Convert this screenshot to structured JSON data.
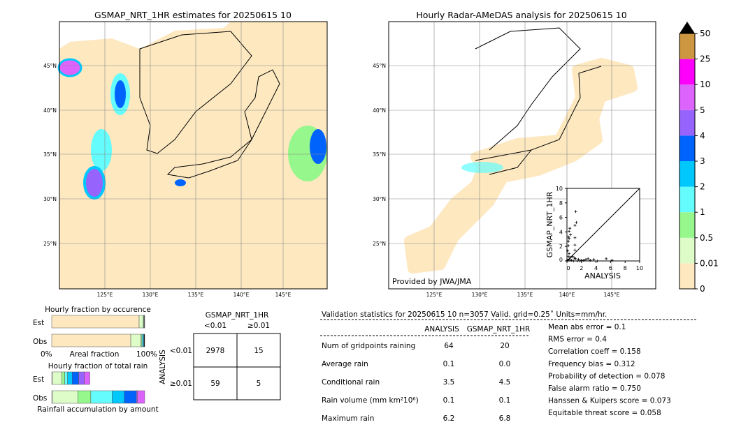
{
  "colors": {
    "c0": "#fde8c0",
    "c1": "#ddfcc8",
    "c2": "#96f78c",
    "c3": "#64fcfc",
    "c4": "#00c8fc",
    "c5": "#0064fc",
    "c6": "#9664fc",
    "c7": "#dc64fc",
    "c8": "#fc00fc",
    "c9": "#cd9640",
    "over": "#000000"
  },
  "chart_data": [
    {
      "type": "heatmap",
      "title": "GSMAP_NRT_1HR estimates for 20250615 10",
      "lon_ticks": [
        "125°E",
        "130°E",
        "135°E",
        "140°E",
        "145°E"
      ],
      "lat_ticks": [
        "45°N",
        "40°N",
        "35°N",
        "30°N",
        "25°N"
      ],
      "grid": true
    },
    {
      "type": "heatmap",
      "title": "Hourly Radar-AMeDAS analysis for 20250615 10",
      "lon_ticks": [
        "125°E",
        "130°E",
        "135°E",
        "140°E",
        "145°E"
      ],
      "lat_ticks": [
        "45°N",
        "40°N",
        "35°N",
        "30°N",
        "25°N"
      ],
      "grid": true,
      "annotation": "Provided by JWA/JMA"
    },
    {
      "type": "colorbar",
      "ticks": [
        "0",
        "0.01",
        "0.5",
        "1",
        "2",
        "3",
        "4",
        "5",
        "10",
        "25",
        "50"
      ],
      "extend": "max"
    },
    {
      "type": "scatter",
      "xlabel": "ANALYSIS",
      "ylabel": "GSMAP_NRT_1HR",
      "xlim": [
        0,
        10
      ],
      "ylim": [
        0,
        10
      ],
      "xticks": [
        "0",
        "2",
        "4",
        "6",
        "8",
        "10"
      ],
      "yticks": [
        "0",
        "2",
        "4",
        "6",
        "8",
        "10"
      ],
      "points": [
        [
          1.2,
          6.8
        ],
        [
          1.3,
          5.3
        ],
        [
          1.1,
          4.9
        ],
        [
          0.4,
          4.5
        ],
        [
          0.3,
          4.1
        ],
        [
          0.5,
          3.6
        ],
        [
          0.2,
          3.3
        ],
        [
          0.3,
          3.1
        ],
        [
          1.1,
          3.2
        ],
        [
          0.2,
          2.7
        ],
        [
          1.1,
          2.2
        ],
        [
          0.2,
          2.1
        ],
        [
          1.1,
          1.5
        ],
        [
          0.1,
          1.4
        ],
        [
          0.3,
          1.0
        ],
        [
          0.2,
          0.6
        ],
        [
          0.5,
          0.5
        ],
        [
          0.8,
          0.6
        ],
        [
          1.0,
          0.4
        ],
        [
          1.2,
          0.3
        ],
        [
          1.6,
          0.2
        ],
        [
          2.0,
          0.1
        ],
        [
          2.3,
          0.1
        ],
        [
          2.6,
          0.2
        ],
        [
          2.9,
          0.3
        ],
        [
          3.2,
          0.1
        ],
        [
          3.7,
          0.2
        ],
        [
          5.4,
          0.3
        ],
        [
          6.2,
          0.1
        ],
        [
          0.6,
          0.1
        ],
        [
          0.9,
          0.0
        ],
        [
          1.4,
          0.0
        ],
        [
          1.8,
          0.0
        ],
        [
          0.3,
          0.2
        ],
        [
          0.1,
          0.1
        ],
        [
          4.2,
          0.0
        ]
      ]
    },
    {
      "type": "bar",
      "title": "Hourly fraction by occurence",
      "xlabel": "Areal fraction",
      "categories": [
        "Est",
        "Obs"
      ],
      "xticks": [
        "0%",
        "100%"
      ],
      "series": [
        {
          "category": "Est",
          "fractions": [
            0.94,
            0.045,
            0.005,
            0.004,
            0.003,
            0.003
          ]
        },
        {
          "category": "Obs",
          "fractions": [
            0.85,
            0.11,
            0.01,
            0.01,
            0.01,
            0.01
          ]
        }
      ]
    },
    {
      "type": "bar",
      "title": "Hourly fraction of total rain",
      "xlabel": "Rainfall accumulation by amount",
      "categories": [
        "Est",
        "Obs"
      ],
      "series": [
        {
          "category": "Est",
          "fractions": [
            0.01,
            0.1,
            0.03,
            0.03,
            0.05,
            0.07,
            0.06,
            0.06
          ]
        },
        {
          "category": "Obs",
          "fractions": [
            0.01,
            0.27,
            0.14,
            0.23,
            0.13,
            0.13,
            0.01,
            0.08
          ]
        }
      ]
    },
    {
      "type": "table",
      "title": "GSMAP_NRT_1HR",
      "col_headers": [
        "<0.01",
        "≥0.01"
      ],
      "row_label": "ANALYSIS",
      "row_headers": [
        "<0.01",
        "≥0.01"
      ],
      "cells": [
        [
          "2978",
          "15"
        ],
        [
          "59",
          "5"
        ]
      ]
    }
  ],
  "stats": {
    "header": "Validation statistics for 20250615 10  n=3057 Valid. grid=0.25˚ Units=mm/hr.",
    "col1": "ANALYSIS",
    "col2": "GSMAP_NRT_1HR",
    "rows": [
      {
        "label": "Num of gridpoints raining",
        "a": "64",
        "b": "20"
      },
      {
        "label": "Average rain",
        "a": "0.1",
        "b": "0.0"
      },
      {
        "label": "Conditional rain",
        "a": "3.5",
        "b": "4.5"
      },
      {
        "label": "Rain volume (mm km²10⁶)",
        "a": "0.1",
        "b": "0.1"
      },
      {
        "label": "Maximum rain",
        "a": "6.2",
        "b": "6.8"
      }
    ],
    "scores": [
      "Mean abs error =    0.1",
      "RMS error =    0.4",
      "Correlation coeff =  0.158",
      "Frequency bias =  0.312",
      "Probability of detection =  0.078",
      "False alarm ratio =  0.750",
      "Hanssen & Kuipers score =  0.073",
      "Equitable threat score =  0.058"
    ]
  }
}
